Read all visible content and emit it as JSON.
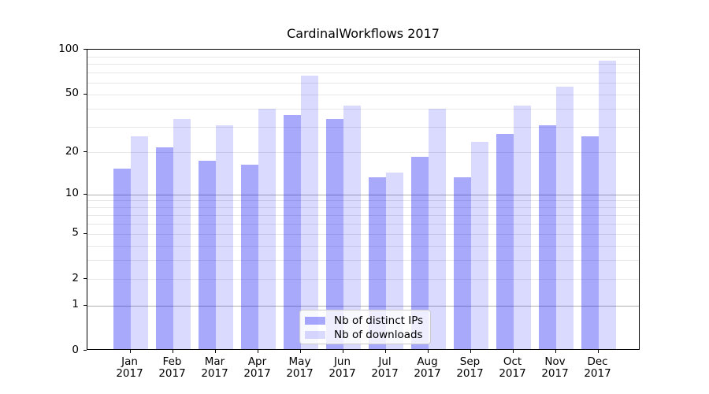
{
  "chart_data": {
    "type": "bar",
    "title": "CardinalWorkflows 2017",
    "categories": [
      "Jan",
      "Feb",
      "Mar",
      "Apr",
      "May",
      "Jun",
      "Jul",
      "Aug",
      "Sep",
      "Oct",
      "Nov",
      "Dec"
    ],
    "category_year": "2017",
    "series": [
      {
        "name": "Nb of distinct IPs",
        "values": [
          15,
          21,
          17,
          16,
          35,
          33,
          13,
          18,
          13,
          26,
          30,
          25
        ],
        "color_solid": "#a9a9fb",
        "alpha": 0.35
      },
      {
        "name": "Nb of downloads",
        "values": [
          25,
          33,
          30,
          39,
          65,
          41,
          14,
          39,
          23,
          41,
          55,
          82
        ],
        "color_solid": "#dadafc",
        "alpha": 0.15
      }
    ],
    "bar_base_color": "#0a0af5",
    "yscale": "symlog-log1p",
    "ylim": [
      0,
      100
    ],
    "ytick_labels": [
      "100",
      "50",
      "20",
      "10",
      "5",
      "2",
      "1",
      "0"
    ],
    "yticks": [
      100,
      50,
      20,
      10,
      5,
      2,
      1,
      0
    ],
    "grid": {
      "major": [
        1,
        10
      ],
      "minor": [
        2,
        3,
        4,
        5,
        6,
        7,
        8,
        9,
        20,
        30,
        40,
        50,
        60,
        70,
        80,
        90
      ],
      "major_color": "#b0b0b0",
      "minor_color": "#e8e8e8"
    },
    "legend": {
      "position": "lower center"
    },
    "axis_color": "#000000",
    "text_color": "#000000",
    "background_color": "#ffffff"
  }
}
